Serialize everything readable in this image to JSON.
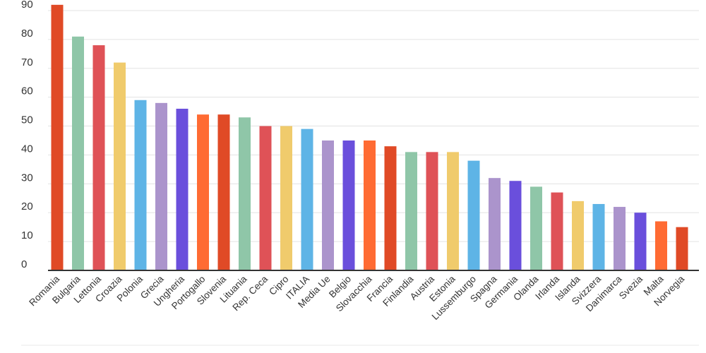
{
  "chart_data": {
    "type": "bar",
    "title": "",
    "xlabel": "",
    "ylabel": "",
    "ylim": [
      0,
      90
    ],
    "yticks": [
      0,
      10,
      20,
      30,
      40,
      50,
      60,
      70,
      80,
      90
    ],
    "grid": true,
    "legend": "none",
    "categories": [
      "Romania",
      "Bulgaria",
      "Lettonia",
      "Croazia",
      "Polonia",
      "Grecia",
      "Ungheria",
      "Portogallo",
      "Slovenia",
      "Lituania",
      "Rep. Ceca",
      "Cipro",
      "ITALIA",
      "Media Ue",
      "Belgio",
      "Slovacchia",
      "Francia",
      "Finlandia",
      "Austria",
      "Estonia",
      "Lussemburgo",
      "Spagna",
      "Germania",
      "Olanda",
      "Irlanda",
      "Islanda",
      "Svizzera",
      "Danimarca",
      "Svezia",
      "Malta",
      "Norvegia"
    ],
    "values": [
      92,
      81,
      78,
      72,
      59,
      58,
      56,
      54,
      54,
      53,
      50,
      50,
      49,
      45,
      45,
      45,
      43,
      41,
      41,
      41,
      38,
      32,
      31,
      29,
      27,
      24,
      23,
      22,
      20,
      17,
      15
    ],
    "colors": [
      "#e04a26",
      "#8fc6a8",
      "#df5257",
      "#f0cb6c",
      "#5eb4e6",
      "#ab94cc",
      "#6a4fdc",
      "#ff6b33",
      "#e04a26",
      "#8fc6a8",
      "#df5257",
      "#f0cb6c",
      "#5eb4e6",
      "#ab94cc",
      "#6a4fdc",
      "#ff6b33",
      "#e04a26",
      "#8fc6a8",
      "#df5257",
      "#f0cb6c",
      "#5eb4e6",
      "#ab94cc",
      "#6a4fdc",
      "#8fc6a8",
      "#df5257",
      "#f0cb6c",
      "#5eb4e6",
      "#ab94cc",
      "#6a4fdc",
      "#ff6b33",
      "#e04a26"
    ]
  }
}
